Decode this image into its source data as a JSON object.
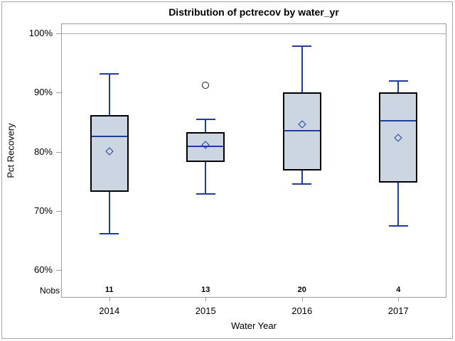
{
  "title": "Distribution of pctrecov by water_yr",
  "colors": {
    "background": "#ffffff",
    "frame_gray": "#9e9e9e",
    "outer_border_gray": "#a8a8a8",
    "refline_gray": "#a8a8a8",
    "box_fill": "#ccd6e3",
    "box_border": "#000000",
    "line_blue": "#1f3d99",
    "outlier_stroke": "#1a1a1a",
    "text": "#000000"
  },
  "chart_data": {
    "type": "boxplot",
    "title": "Distribution of pctrecov by water_yr",
    "xlabel": "Water Year",
    "ylabel": "Pct Recovery",
    "categories": [
      "2014",
      "2015",
      "2016",
      "2017"
    ],
    "nobs_label": "Nobs",
    "nobs": [
      "11",
      "13",
      "20",
      "4"
    ],
    "y_ticks": [
      {
        "value": 100,
        "label": "100%"
      },
      {
        "value": 90,
        "label": "90%"
      },
      {
        "value": 80,
        "label": "80%"
      },
      {
        "value": 70,
        "label": "70%"
      },
      {
        "value": 60,
        "label": "60%"
      }
    ],
    "y_axis_unit": "percent",
    "refline": 100,
    "grid": false,
    "legend": "none",
    "boxes": [
      {
        "category": "2014",
        "whisker_low": 66.2,
        "q1": 73.2,
        "median": 82.6,
        "q3": 86.2,
        "whisker_high": 93.2,
        "mean": 80.1,
        "nobs": 11,
        "outliers": []
      },
      {
        "category": "2015",
        "whisker_low": 72.9,
        "q1": 78.3,
        "median": 80.9,
        "q3": 83.3,
        "whisker_high": 85.5,
        "mean": 81.1,
        "nobs": 13,
        "outliers": [
          91.2
        ]
      },
      {
        "category": "2016",
        "whisker_low": 74.5,
        "q1": 76.8,
        "median": 83.6,
        "q3": 90.0,
        "whisker_high": 97.8,
        "mean": 84.6,
        "nobs": 20,
        "outliers": []
      },
      {
        "category": "2017",
        "whisker_low": 67.5,
        "q1": 74.8,
        "median": 85.2,
        "q3": 90.0,
        "whisker_high": 92.0,
        "mean": 82.4,
        "nobs": 4,
        "outliers": []
      }
    ]
  }
}
